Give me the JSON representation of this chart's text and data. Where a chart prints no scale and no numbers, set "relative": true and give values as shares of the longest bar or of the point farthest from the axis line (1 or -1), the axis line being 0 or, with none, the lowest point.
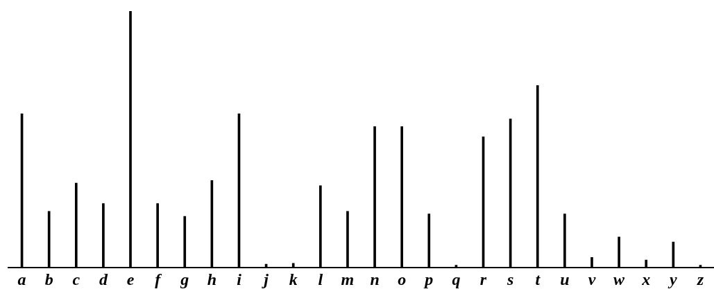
{
  "chart_data": {
    "type": "bar",
    "relative": true,
    "grid": false,
    "legend": false,
    "color": "#000000",
    "categories": [
      "a",
      "b",
      "c",
      "d",
      "e",
      "f",
      "g",
      "h",
      "i",
      "j",
      "k",
      "l",
      "m",
      "n",
      "o",
      "p",
      "q",
      "r",
      "s",
      "t",
      "u",
      "v",
      "w",
      "x",
      "y",
      "z"
    ],
    "values": [
      0.6,
      0.22,
      0.33,
      0.25,
      1,
      0.25,
      0.2,
      0.34,
      0.6,
      0.014,
      0.017,
      0.32,
      0.22,
      0.55,
      0.55,
      0.21,
      0.01,
      0.51,
      0.58,
      0.71,
      0.21,
      0.04,
      0.12,
      0.03,
      0.1,
      0.01
    ]
  }
}
